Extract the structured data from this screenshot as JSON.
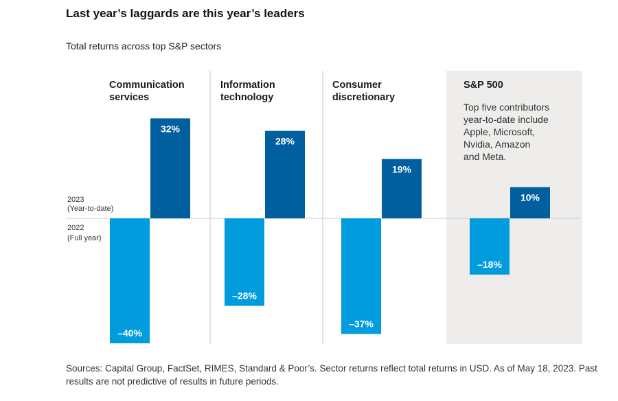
{
  "title": "Last year’s laggards are this year’s leaders",
  "subtitle": "Total returns across top S&P sectors",
  "sources": "Sources: Capital Group, FactSet, RIMES, Standard & Poor’s. Sector returns reflect total returns in USD. As of May 18, 2023. Past results are not predictive of results in future periods.",
  "colors": {
    "bar_2023": "#005f9e",
    "bar_2022": "#009cde",
    "highlight_panel": "#eeedeb",
    "divider": "#c8c8c8",
    "zero_line": "#cccccc"
  },
  "chart_data": {
    "type": "bar",
    "title": "",
    "row_labels": [
      {
        "line1": "2023",
        "line2": "(Year-to-date)"
      },
      {
        "line1": "2022",
        "line2": "(Full year)"
      }
    ],
    "groups": [
      {
        "name_lines": [
          "Communication",
          "services"
        ],
        "value_2023": 32,
        "value_2022": -40,
        "label_2023": "32%",
        "label_2022": "–40%"
      },
      {
        "name_lines": [
          "Information",
          "technology"
        ],
        "value_2023": 28,
        "value_2022": -28,
        "label_2023": "28%",
        "label_2022": "–28%"
      },
      {
        "name_lines": [
          "Consumer",
          "discretionary"
        ],
        "value_2023": 19,
        "value_2022": -37,
        "label_2023": "19%",
        "label_2022": "–37%"
      },
      {
        "name_lines": [
          "S&P 500"
        ],
        "value_2023": 10,
        "value_2022": -18,
        "label_2023": "10%",
        "label_2022": "–18%",
        "highlight": true,
        "note_lines": [
          "Top five contributors",
          "year-to-date include",
          "Apple, Microsoft,",
          "Nvidia, Amazon",
          "and Meta."
        ]
      }
    ],
    "ylim": [
      -40,
      32
    ]
  }
}
